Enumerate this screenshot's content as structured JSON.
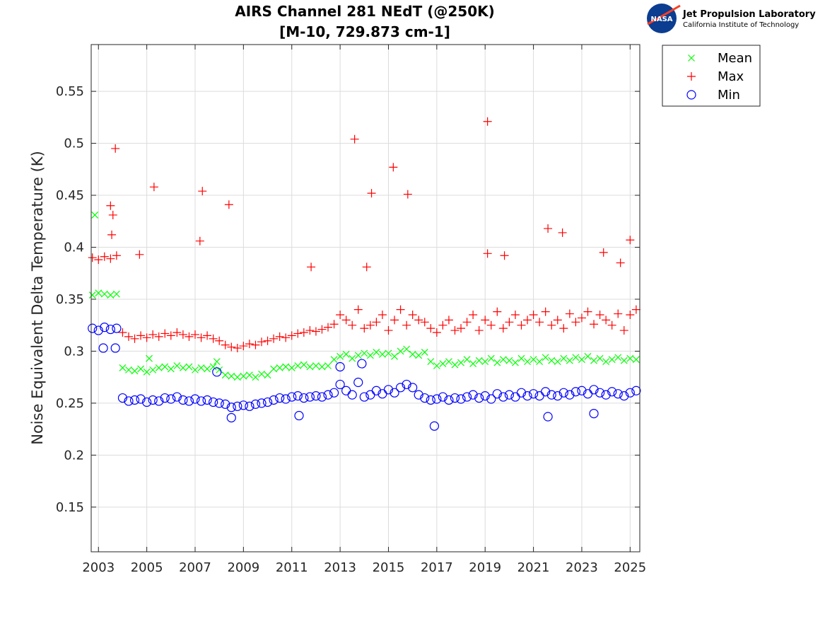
{
  "logo": {
    "emblem_text": "NASA",
    "line1": "Jet Propulsion Laboratory",
    "line2": "California Institute of Technology"
  },
  "chart_data": {
    "type": "scatter",
    "title": [
      "AIRS Channel 281 NEdT (@250K)",
      "[M-10, 729.873 cm-1]"
    ],
    "xlabel": "",
    "ylabel": "Noise Equivalent Delta Temperature (K)",
    "xlim": [
      2002.7,
      2025.4
    ],
    "ylim": [
      0.107,
      0.595
    ],
    "xticks": [
      2003,
      2005,
      2007,
      2009,
      2011,
      2013,
      2015,
      2017,
      2019,
      2021,
      2023,
      2025
    ],
    "xtick_labels": [
      "2003",
      "2005",
      "2007",
      "2009",
      "2011",
      "2013",
      "2015",
      "2017",
      "2019",
      "2021",
      "2023",
      "2025"
    ],
    "yticks": [
      0.15,
      0.2,
      0.25,
      0.3,
      0.35,
      0.4,
      0.45,
      0.5,
      0.55
    ],
    "ytick_labels": [
      "0.15",
      "0.2",
      "0.25",
      "0.3",
      "0.35",
      "0.4",
      "0.45",
      "0.5",
      "0.55"
    ],
    "grid": true,
    "legend_position": "outside-top-right",
    "x": [
      2002.75,
      2003,
      2003.25,
      2003.5,
      2003.75,
      2004,
      2004.25,
      2004.5,
      2004.75,
      2005,
      2005.25,
      2005.5,
      2005.75,
      2006,
      2006.25,
      2006.5,
      2006.75,
      2007,
      2007.25,
      2007.5,
      2007.75,
      2008,
      2008.25,
      2008.5,
      2008.75,
      2009,
      2009.25,
      2009.5,
      2009.75,
      2010,
      2010.25,
      2010.5,
      2010.75,
      2011,
      2011.25,
      2011.5,
      2011.75,
      2012,
      2012.25,
      2012.5,
      2012.75,
      2013,
      2013.25,
      2013.5,
      2013.75,
      2014,
      2014.25,
      2014.5,
      2014.75,
      2015,
      2015.25,
      2015.5,
      2015.75,
      2016,
      2016.25,
      2016.5,
      2016.75,
      2017,
      2017.25,
      2017.5,
      2017.75,
      2018,
      2018.25,
      2018.5,
      2018.75,
      2019,
      2019.25,
      2019.5,
      2019.75,
      2020,
      2020.25,
      2020.5,
      2020.75,
      2021,
      2021.25,
      2021.5,
      2021.75,
      2022,
      2022.25,
      2022.5,
      2022.75,
      2023,
      2023.25,
      2023.5,
      2023.75,
      2024,
      2024.25,
      2024.5,
      2024.75,
      2025,
      2025.25
    ],
    "series": [
      {
        "name": "Mean",
        "marker": "x",
        "color": "#00ff00",
        "values": [
          0.354,
          0.356,
          0.355,
          0.354,
          0.355,
          0.284,
          0.282,
          0.281,
          0.283,
          0.28,
          0.282,
          0.284,
          0.285,
          0.283,
          0.286,
          0.284,
          0.285,
          0.282,
          0.284,
          0.283,
          0.285,
          0.282,
          0.277,
          0.276,
          0.275,
          0.276,
          0.277,
          0.275,
          0.278,
          0.277,
          0.283,
          0.284,
          0.285,
          0.284,
          0.286,
          0.287,
          0.285,
          0.286,
          0.285,
          0.286,
          0.292,
          0.295,
          0.297,
          0.293,
          0.296,
          0.298,
          0.296,
          0.299,
          0.297,
          0.298,
          0.295,
          0.3,
          0.302,
          0.297,
          0.296,
          0.299,
          0.29,
          0.286,
          0.288,
          0.29,
          0.287,
          0.289,
          0.292,
          0.288,
          0.291,
          0.29,
          0.293,
          0.289,
          0.292,
          0.291,
          0.289,
          0.293,
          0.29,
          0.292,
          0.29,
          0.294,
          0.291,
          0.29,
          0.293,
          0.291,
          0.294,
          0.292,
          0.295,
          0.291,
          0.293,
          0.29,
          0.292,
          0.294,
          0.291,
          0.293,
          0.292
        ],
        "outliers": [
          [
            2002.85,
            0.431
          ],
          [
            2007.9,
            0.29
          ],
          [
            2005.1,
            0.293
          ]
        ]
      },
      {
        "name": "Max",
        "marker": "+",
        "color": "#ff0000",
        "values": [
          0.39,
          0.388,
          0.391,
          0.389,
          0.392,
          0.318,
          0.314,
          0.312,
          0.315,
          0.313,
          0.316,
          0.314,
          0.317,
          0.315,
          0.318,
          0.316,
          0.314,
          0.316,
          0.313,
          0.315,
          0.312,
          0.31,
          0.306,
          0.304,
          0.303,
          0.305,
          0.307,
          0.306,
          0.309,
          0.31,
          0.312,
          0.314,
          0.313,
          0.315,
          0.317,
          0.318,
          0.32,
          0.319,
          0.321,
          0.323,
          0.326,
          0.335,
          0.33,
          0.325,
          0.34,
          0.322,
          0.325,
          0.328,
          0.335,
          0.32,
          0.33,
          0.34,
          0.325,
          0.335,
          0.33,
          0.328,
          0.322,
          0.318,
          0.325,
          0.33,
          0.32,
          0.322,
          0.328,
          0.335,
          0.32,
          0.33,
          0.325,
          0.338,
          0.322,
          0.328,
          0.335,
          0.325,
          0.33,
          0.335,
          0.328,
          0.338,
          0.325,
          0.33,
          0.322,
          0.336,
          0.328,
          0.332,
          0.338,
          0.326,
          0.335,
          0.33,
          0.325,
          0.336,
          0.32,
          0.335,
          0.34
        ],
        "outliers": [
          [
            2003.5,
            0.44
          ],
          [
            2003.6,
            0.431
          ],
          [
            2003.7,
            0.495
          ],
          [
            2003.55,
            0.412
          ],
          [
            2004.7,
            0.393
          ],
          [
            2005.3,
            0.458
          ],
          [
            2007.3,
            0.454
          ],
          [
            2007.2,
            0.406
          ],
          [
            2008.4,
            0.441
          ],
          [
            2011.8,
            0.381
          ],
          [
            2013.6,
            0.504
          ],
          [
            2014.1,
            0.381
          ],
          [
            2014.3,
            0.452
          ],
          [
            2015.2,
            0.477
          ],
          [
            2015.8,
            0.451
          ],
          [
            2019.1,
            0.521
          ],
          [
            2019.1,
            0.394
          ],
          [
            2019.8,
            0.392
          ],
          [
            2021.6,
            0.418
          ],
          [
            2022.2,
            0.414
          ],
          [
            2023.9,
            0.395
          ],
          [
            2024.6,
            0.385
          ],
          [
            2025.0,
            0.407
          ]
        ]
      },
      {
        "name": "Min",
        "marker": "o",
        "color": "#0000ff",
        "values": [
          0.322,
          0.32,
          0.323,
          0.321,
          0.322,
          0.255,
          0.252,
          0.253,
          0.254,
          0.251,
          0.253,
          0.252,
          0.255,
          0.254,
          0.256,
          0.253,
          0.252,
          0.254,
          0.252,
          0.253,
          0.251,
          0.25,
          0.249,
          0.246,
          0.247,
          0.248,
          0.247,
          0.249,
          0.25,
          0.251,
          0.253,
          0.255,
          0.254,
          0.256,
          0.257,
          0.255,
          0.256,
          0.257,
          0.256,
          0.258,
          0.26,
          0.268,
          0.262,
          0.258,
          0.27,
          0.256,
          0.258,
          0.262,
          0.259,
          0.263,
          0.26,
          0.265,
          0.268,
          0.265,
          0.258,
          0.255,
          0.253,
          0.254,
          0.256,
          0.253,
          0.255,
          0.254,
          0.256,
          0.258,
          0.255,
          0.257,
          0.254,
          0.259,
          0.256,
          0.258,
          0.256,
          0.26,
          0.257,
          0.259,
          0.257,
          0.261,
          0.258,
          0.257,
          0.26,
          0.258,
          0.261,
          0.262,
          0.259,
          0.263,
          0.26,
          0.258,
          0.261,
          0.259,
          0.257,
          0.26,
          0.262
        ],
        "outliers": [
          [
            2003.2,
            0.303
          ],
          [
            2003.7,
            0.303
          ],
          [
            2007.9,
            0.28
          ],
          [
            2008.5,
            0.236
          ],
          [
            2011.3,
            0.238
          ],
          [
            2016.9,
            0.228
          ],
          [
            2013.0,
            0.285
          ],
          [
            2013.9,
            0.288
          ],
          [
            2021.6,
            0.237
          ],
          [
            2023.5,
            0.24
          ]
        ]
      }
    ]
  }
}
